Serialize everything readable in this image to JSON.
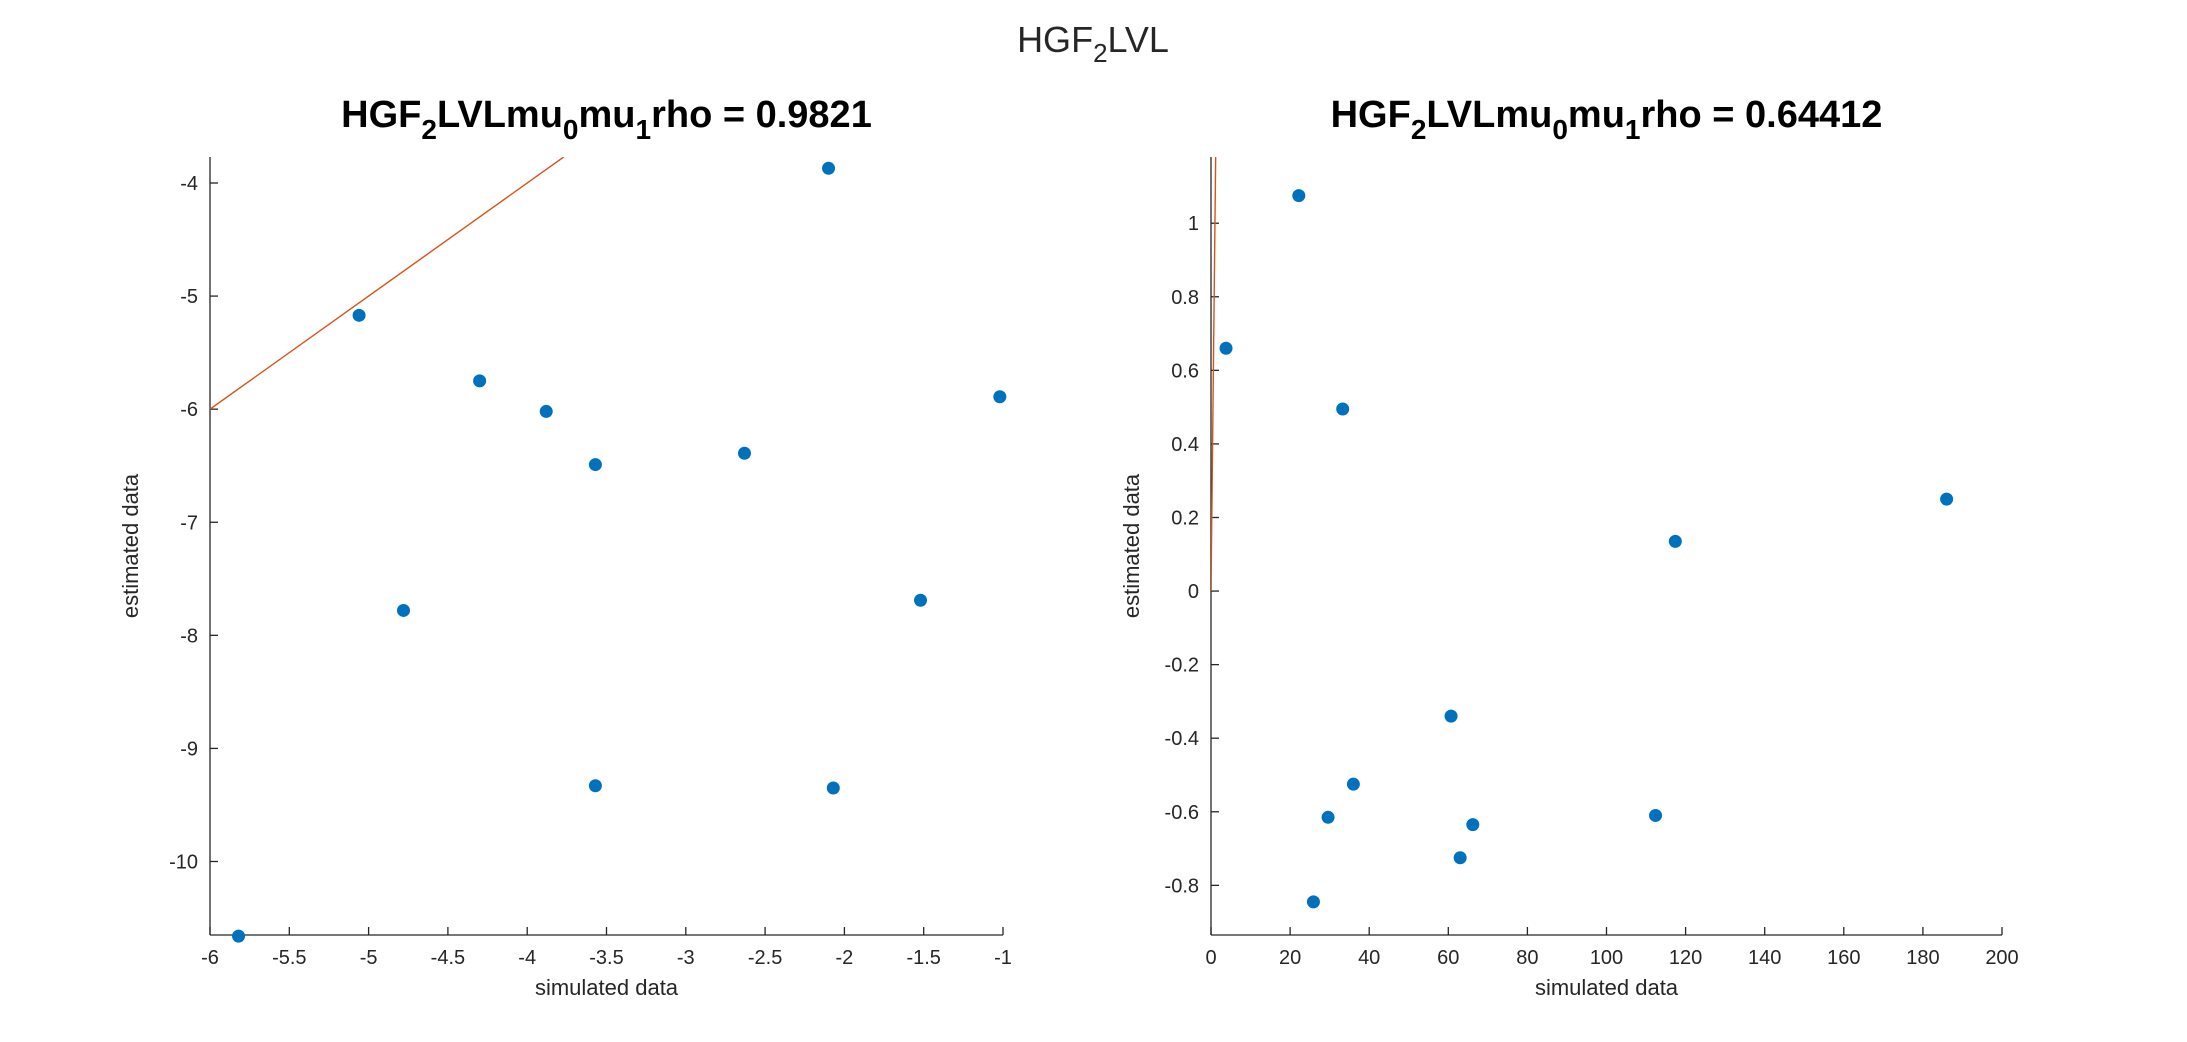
{
  "figure": {
    "suptitle": {
      "pre": "HGF",
      "sub": "2",
      "post": "LVL"
    }
  },
  "colors": {
    "marker": "#0072BD",
    "fit_line": "#D95319",
    "axis": "#262626"
  },
  "chart_data": [
    {
      "type": "scatter",
      "title_parts": [
        {
          "t": "HGF",
          "sub": false
        },
        {
          "t": "2",
          "sub": true
        },
        {
          "t": "LVLmu",
          "sub": false
        },
        {
          "t": "0",
          "sub": true
        },
        {
          "t": "mu",
          "sub": false
        },
        {
          "t": "1",
          "sub": true
        },
        {
          "t": "rho = 0.9821",
          "sub": false
        }
      ],
      "xlabel": "simulated data",
      "ylabel": "estimated data",
      "xlim": [
        -6,
        -1
      ],
      "ylim": [
        -10.65,
        -3.77
      ],
      "xticks": [
        -6,
        -5.5,
        -5,
        -4.5,
        -4,
        -3.5,
        -3,
        -2.5,
        -2,
        -1.5,
        -1
      ],
      "xtick_labels": [
        "-6",
        "-5.5",
        "-5",
        "-4.5",
        "-4",
        "-3.5",
        "-3",
        "-2.5",
        "-2",
        "-1.5",
        "-1"
      ],
      "yticks": [
        -10,
        -9,
        -8,
        -7,
        -6,
        -5,
        -4
      ],
      "ytick_labels": [
        "-10",
        "-9",
        "-8",
        "-7",
        "-6",
        "-5",
        "-4"
      ],
      "points": [
        {
          "x": -5.82,
          "y": -10.66
        },
        {
          "x": -5.06,
          "y": -5.17
        },
        {
          "x": -4.78,
          "y": -7.78
        },
        {
          "x": -4.3,
          "y": -5.75
        },
        {
          "x": -3.88,
          "y": -6.02
        },
        {
          "x": -3.57,
          "y": -6.49
        },
        {
          "x": -3.57,
          "y": -9.33
        },
        {
          "x": -2.63,
          "y": -6.39
        },
        {
          "x": -2.1,
          "y": -3.87
        },
        {
          "x": -2.07,
          "y": -9.35
        },
        {
          "x": -1.52,
          "y": -7.69
        },
        {
          "x": -1.02,
          "y": -5.89
        }
      ],
      "fit_line": [
        {
          "x": -6,
          "y": -6
        },
        {
          "x": -3.77,
          "y": -3.77
        }
      ],
      "grid": false
    },
    {
      "type": "scatter",
      "title_parts": [
        {
          "t": "HGF",
          "sub": false
        },
        {
          "t": "2",
          "sub": true
        },
        {
          "t": "LVLmu",
          "sub": false
        },
        {
          "t": "0",
          "sub": true
        },
        {
          "t": "mu",
          "sub": false
        },
        {
          "t": "1",
          "sub": true
        },
        {
          "t": "rho = 0.64412",
          "sub": false
        }
      ],
      "xlabel": "simulated data",
      "ylabel": "estimated data",
      "xlim": [
        0,
        200
      ],
      "ylim": [
        -0.935,
        1.18
      ],
      "xticks": [
        0,
        20,
        40,
        60,
        80,
        100,
        120,
        140,
        160,
        180,
        200
      ],
      "xtick_labels": [
        "0",
        "20",
        "40",
        "60",
        "80",
        "100",
        "120",
        "140",
        "160",
        "180",
        "200"
      ],
      "yticks": [
        -0.8,
        -0.6,
        -0.4,
        -0.2,
        0,
        0.2,
        0.4,
        0.6,
        0.8,
        1
      ],
      "ytick_labels": [
        "-0.8",
        "-0.6",
        "-0.4",
        "-0.2",
        "0",
        "0.2",
        "0.4",
        "0.6",
        "0.8",
        "1"
      ],
      "points": [
        {
          "x": 3.8,
          "y": 0.66
        },
        {
          "x": 22.2,
          "y": 1.075
        },
        {
          "x": 25.9,
          "y": -0.845
        },
        {
          "x": 29.6,
          "y": -0.615
        },
        {
          "x": 33.3,
          "y": 0.495
        },
        {
          "x": 36.0,
          "y": -0.525
        },
        {
          "x": 60.7,
          "y": -0.34
        },
        {
          "x": 63.0,
          "y": -0.725
        },
        {
          "x": 66.2,
          "y": -0.635
        },
        {
          "x": 112.4,
          "y": -0.61
        },
        {
          "x": 117.4,
          "y": 0.135
        },
        {
          "x": 186.0,
          "y": 0.25
        }
      ],
      "fit_line": [
        {
          "x": 0,
          "y": 0
        },
        {
          "x": 1.18,
          "y": 1.18
        }
      ],
      "grid": false
    }
  ]
}
